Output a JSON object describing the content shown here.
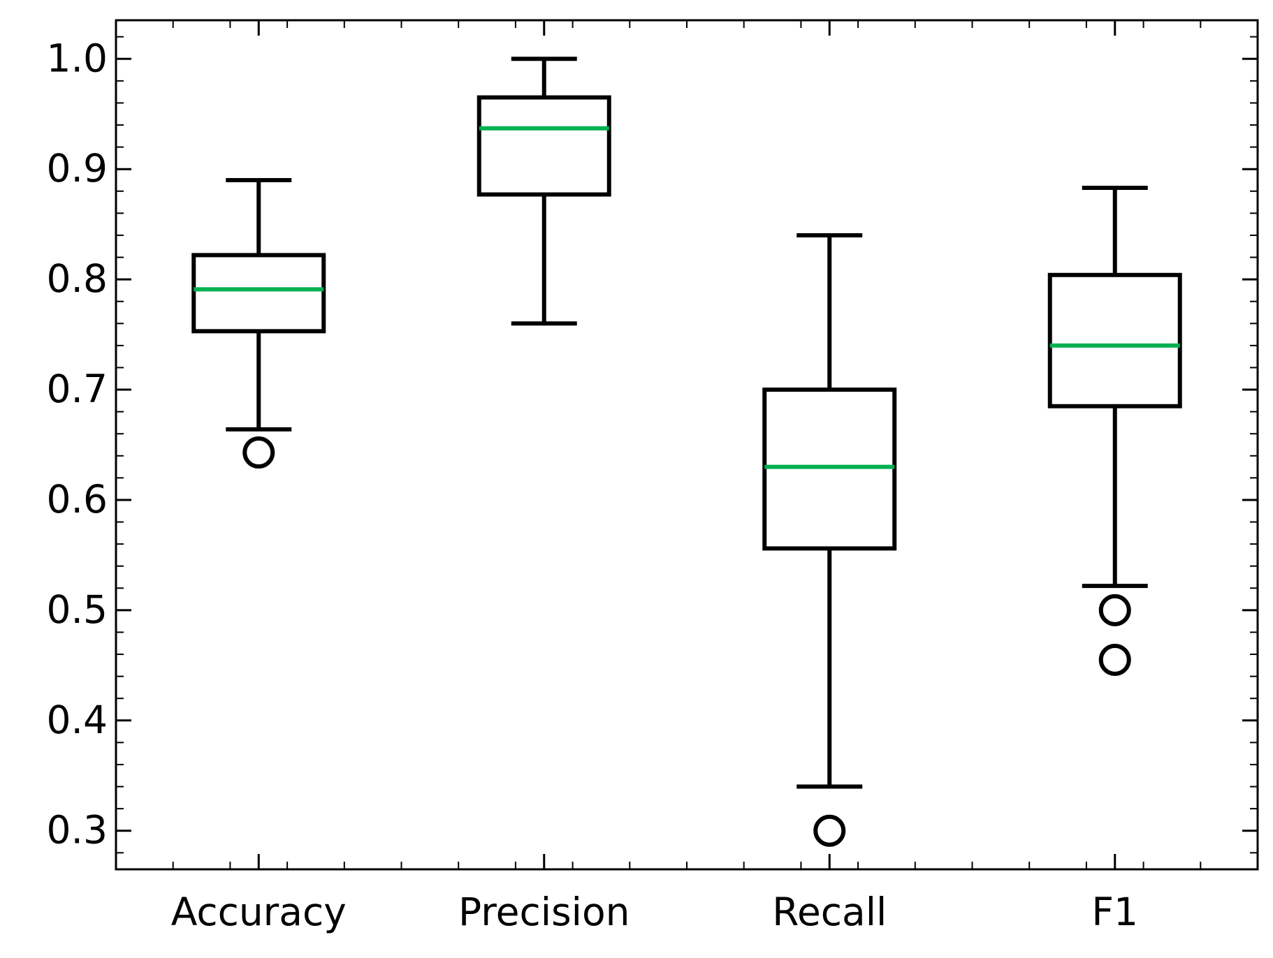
{
  "chart_data": {
    "type": "box",
    "title": "",
    "xlabel": "",
    "ylabel": "",
    "categories": [
      "Accuracy",
      "Precision",
      "Recall",
      "F1"
    ],
    "ylim": [
      0.265,
      1.035
    ],
    "yticks": [
      0.3,
      0.4,
      0.5,
      0.6,
      0.7,
      0.8,
      0.9,
      1.0
    ],
    "ytick_labels": [
      "0.3",
      "0.4",
      "0.5",
      "0.6",
      "0.7",
      "0.8",
      "0.9",
      "1.0"
    ],
    "grid": false,
    "legend": "none",
    "colors": {
      "box": "#000000",
      "median": "#00b050",
      "axes": "#000000"
    },
    "boxes": [
      {
        "name": "Accuracy",
        "whisker_low": 0.664,
        "q1": 0.753,
        "median": 0.791,
        "q3": 0.822,
        "whisker_high": 0.89,
        "outliers": [
          0.643
        ]
      },
      {
        "name": "Precision",
        "whisker_low": 0.76,
        "q1": 0.877,
        "median": 0.937,
        "q3": 0.965,
        "whisker_high": 1.0,
        "outliers": []
      },
      {
        "name": "Recall",
        "whisker_low": 0.34,
        "q1": 0.556,
        "median": 0.63,
        "q3": 0.7,
        "whisker_high": 0.84,
        "outliers": [
          0.3
        ]
      },
      {
        "name": "F1",
        "whisker_low": 0.522,
        "q1": 0.685,
        "median": 0.74,
        "q3": 0.804,
        "whisker_high": 0.883,
        "outliers": [
          0.5,
          0.455
        ]
      }
    ]
  }
}
